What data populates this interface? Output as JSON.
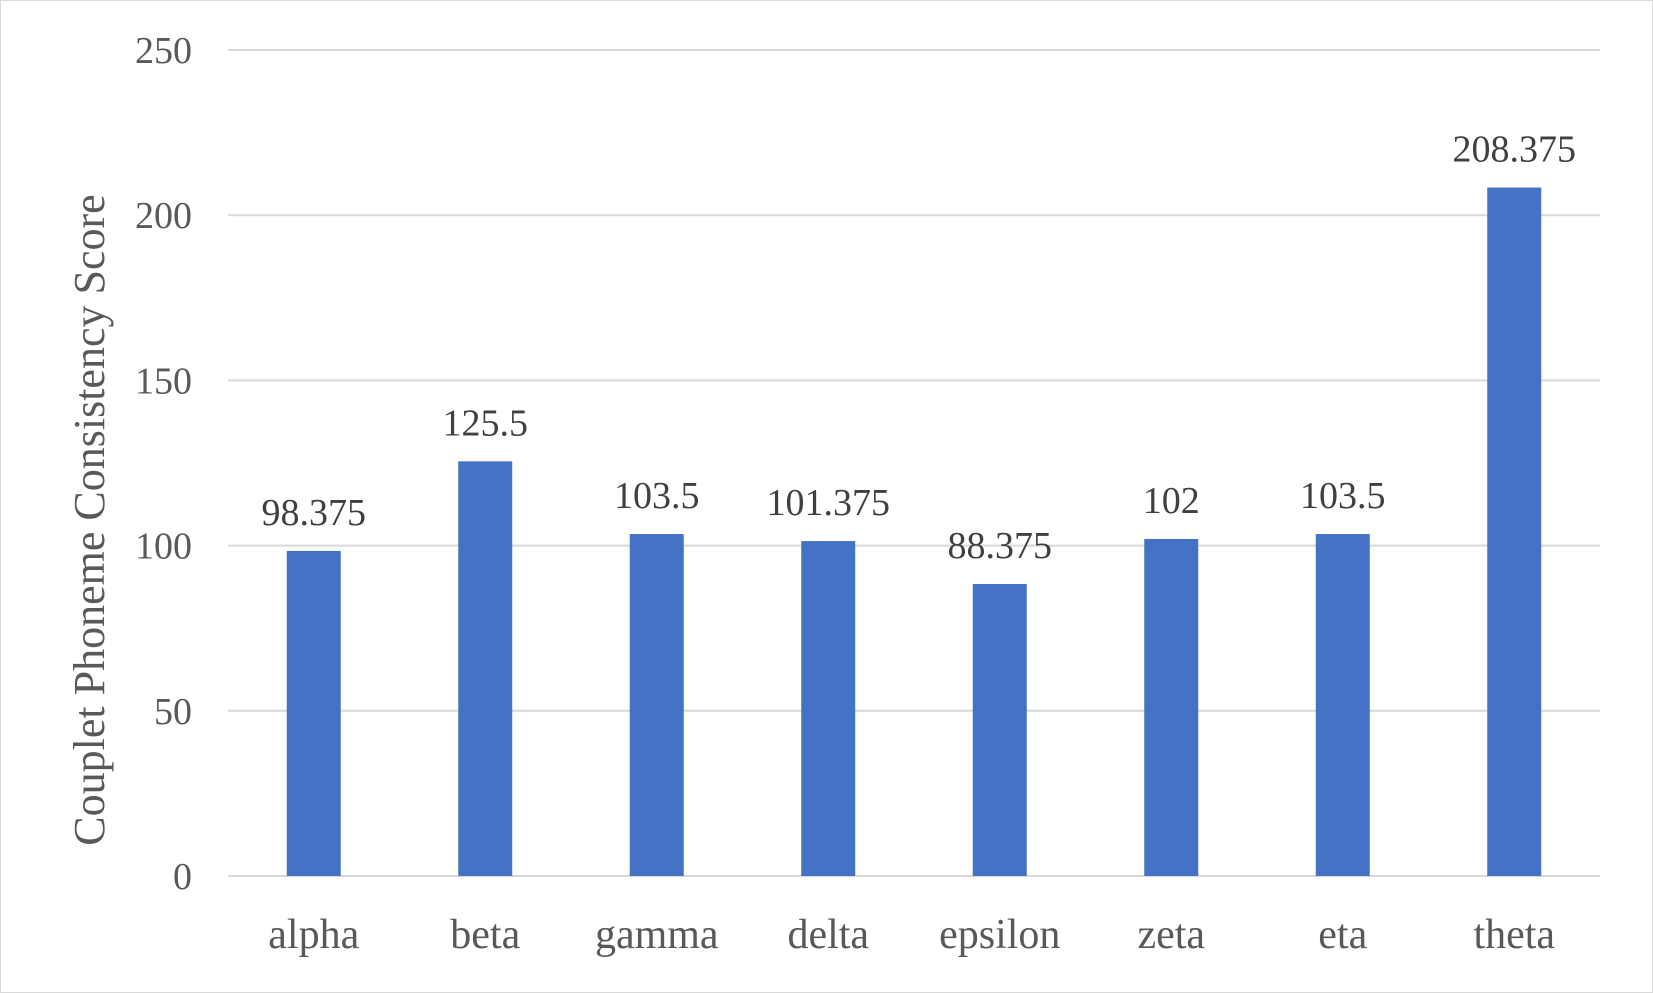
{
  "chart_data": {
    "type": "bar",
    "categories": [
      "alpha",
      "beta",
      "gamma",
      "delta",
      "epsilon",
      "zeta",
      "eta",
      "theta"
    ],
    "values": [
      98.375,
      125.5,
      103.5,
      101.375,
      88.375,
      102,
      103.5,
      208.375
    ],
    "data_labels": [
      "98.375",
      "125.5",
      "103.5",
      "101.375",
      "88.375",
      "102",
      "103.5",
      "208.375"
    ],
    "title": "",
    "xlabel": "",
    "ylabel": "Couplet Phoneme Consistency Score",
    "ylim": [
      0,
      250
    ],
    "yticks": [
      0,
      50,
      100,
      150,
      200,
      250
    ],
    "grid": true,
    "legend": "none",
    "bar_color": "#4472c4"
  }
}
